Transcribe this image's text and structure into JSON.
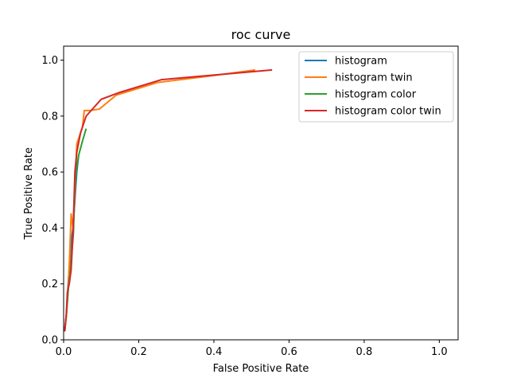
{
  "chart_data": {
    "type": "line",
    "title": "roc curve",
    "xlabel": "False Positive Rate",
    "ylabel": "True Positive Rate",
    "xlim": [
      0,
      1.05
    ],
    "ylim": [
      0,
      1.05
    ],
    "xticks": [
      "0.0",
      "0.2",
      "0.4",
      "0.6",
      "0.8",
      "1.0"
    ],
    "yticks": [
      "0.0",
      "0.2",
      "0.4",
      "0.6",
      "0.8",
      "1.0"
    ],
    "grid": false,
    "legend_position": "top-right",
    "series": [
      {
        "name": "histogram",
        "color": "#1f77b4",
        "points": [
          [
            0.003,
            0.03
          ],
          [
            0.008,
            0.1
          ],
          [
            0.012,
            0.2
          ],
          [
            0.016,
            0.28
          ],
          [
            0.02,
            0.35
          ],
          [
            0.025,
            0.4
          ],
          [
            0.03,
            0.5
          ],
          [
            0.035,
            0.6
          ],
          [
            0.04,
            0.66
          ]
        ]
      },
      {
        "name": "histogram twin",
        "color": "#ff7f0e",
        "points": [
          [
            0.003,
            0.04
          ],
          [
            0.007,
            0.08
          ],
          [
            0.012,
            0.18
          ],
          [
            0.016,
            0.3
          ],
          [
            0.02,
            0.45
          ],
          [
            0.025,
            0.4
          ],
          [
            0.03,
            0.52
          ],
          [
            0.035,
            0.7
          ],
          [
            0.05,
            0.76
          ],
          [
            0.055,
            0.82
          ],
          [
            0.07,
            0.82
          ],
          [
            0.095,
            0.825
          ],
          [
            0.14,
            0.875
          ],
          [
            0.25,
            0.92
          ],
          [
            0.4,
            0.945
          ],
          [
            0.51,
            0.965
          ]
        ]
      },
      {
        "name": "histogram color",
        "color": "#2ca02c",
        "points": [
          [
            0.003,
            0.04
          ],
          [
            0.008,
            0.1
          ],
          [
            0.013,
            0.19
          ],
          [
            0.017,
            0.23
          ],
          [
            0.021,
            0.3
          ],
          [
            0.026,
            0.38
          ],
          [
            0.03,
            0.55
          ],
          [
            0.035,
            0.62
          ],
          [
            0.04,
            0.66
          ],
          [
            0.05,
            0.71
          ],
          [
            0.06,
            0.755
          ]
        ]
      },
      {
        "name": "histogram color twin",
        "color": "#d62728",
        "points": [
          [
            0.003,
            0.03
          ],
          [
            0.007,
            0.09
          ],
          [
            0.01,
            0.17
          ],
          [
            0.015,
            0.2
          ],
          [
            0.02,
            0.25
          ],
          [
            0.025,
            0.38
          ],
          [
            0.03,
            0.6
          ],
          [
            0.035,
            0.67
          ],
          [
            0.045,
            0.74
          ],
          [
            0.06,
            0.8
          ],
          [
            0.1,
            0.86
          ],
          [
            0.15,
            0.885
          ],
          [
            0.26,
            0.93
          ],
          [
            0.555,
            0.965
          ]
        ]
      }
    ]
  }
}
